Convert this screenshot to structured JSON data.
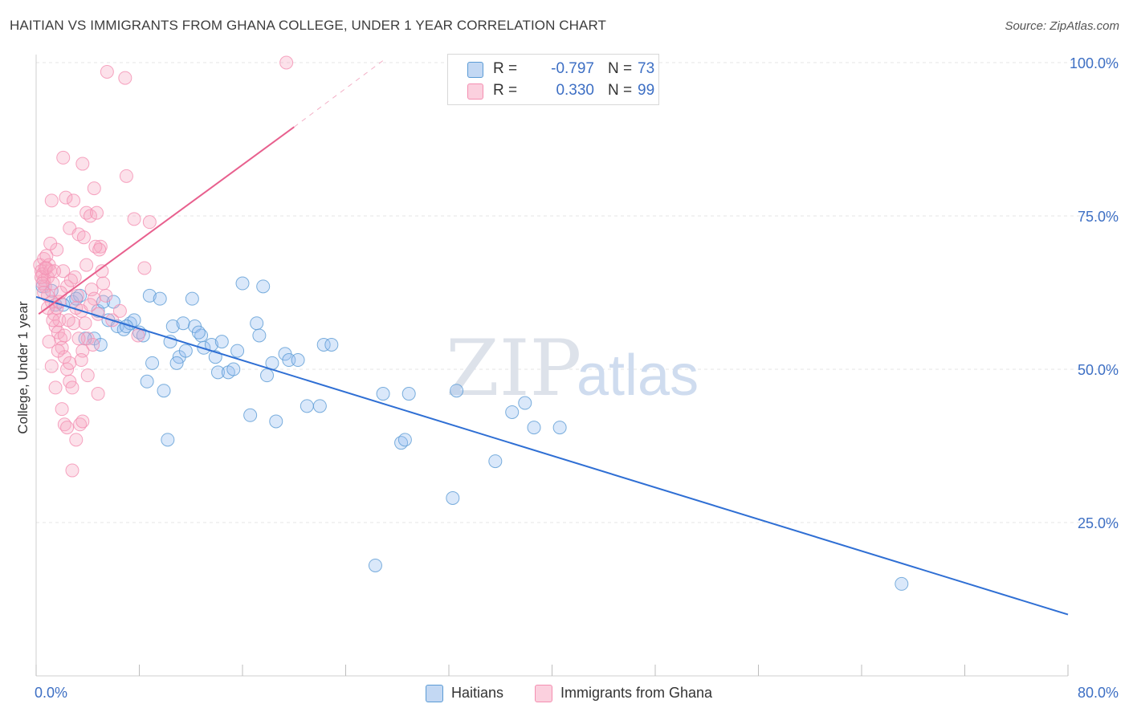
{
  "header": {
    "title": "HAITIAN VS IMMIGRANTS FROM GHANA COLLEGE, UNDER 1 YEAR CORRELATION CHART",
    "source": "Source: ZipAtlas.com"
  },
  "watermark": {
    "zip": "ZIP",
    "atlas": "atlas"
  },
  "legend": {
    "r_label": "R =",
    "n_label": "N =",
    "rows": [
      {
        "r": "-0.797",
        "n": "73",
        "color": "#5b9bd5"
      },
      {
        "r": "0.330",
        "n": "99",
        "color": "#f48fb1"
      }
    ]
  },
  "bottom_legend": [
    {
      "label": "Haitians",
      "color": "#5b9bd5"
    },
    {
      "label": "Immigrants from Ghana",
      "color": "#f48fb1"
    }
  ],
  "chart_data": {
    "type": "scatter",
    "title": "HAITIAN VS IMMIGRANTS FROM GHANA COLLEGE, UNDER 1 YEAR CORRELATION CHART",
    "xlabel": "",
    "ylabel": "College, Under 1 year",
    "xlim": [
      0,
      80
    ],
    "ylim": [
      0,
      102
    ],
    "x_tick_labels": [
      "0.0%",
      "80.0%"
    ],
    "y_tick_labels": [
      "25.0%",
      "50.0%",
      "75.0%",
      "100.0%"
    ],
    "y_ticks": [
      25,
      50,
      75,
      100
    ],
    "grid": true,
    "series": [
      {
        "name": "Haitians",
        "color": "#5b9bd5",
        "line_color": "#2f6fd4",
        "r": -0.797,
        "n": 73,
        "trend": {
          "x": [
            0,
            80
          ],
          "y": [
            61.8,
            10.0
          ]
        },
        "points": [
          [
            0.5,
            63.5
          ],
          [
            1.2,
            62.8
          ],
          [
            1.5,
            60.5
          ],
          [
            2.8,
            61.0
          ],
          [
            3.4,
            62.0
          ],
          [
            4.5,
            55.0
          ],
          [
            3.8,
            55.0
          ],
          [
            4.8,
            59.5
          ],
          [
            5.2,
            61.0
          ],
          [
            5.6,
            58.0
          ],
          [
            6.3,
            57.0
          ],
          [
            6.8,
            56.5
          ],
          [
            6.0,
            61.0
          ],
          [
            7.3,
            57.5
          ],
          [
            7.6,
            58.0
          ],
          [
            8.0,
            56.0
          ],
          [
            8.3,
            55.5
          ],
          [
            8.6,
            48.0
          ],
          [
            8.8,
            62.0
          ],
          [
            9.0,
            51.0
          ],
          [
            9.6,
            61.5
          ],
          [
            9.9,
            46.5
          ],
          [
            10.2,
            38.5
          ],
          [
            10.4,
            54.5
          ],
          [
            10.6,
            57.0
          ],
          [
            11.1,
            52.0
          ],
          [
            11.4,
            57.5
          ],
          [
            11.6,
            53.0
          ],
          [
            12.1,
            61.5
          ],
          [
            12.3,
            57.0
          ],
          [
            12.8,
            55.5
          ],
          [
            13.0,
            53.5
          ],
          [
            13.6,
            54.0
          ],
          [
            13.9,
            52.0
          ],
          [
            14.1,
            49.5
          ],
          [
            14.4,
            54.5
          ],
          [
            14.9,
            49.5
          ],
          [
            15.3,
            50.0
          ],
          [
            15.6,
            53.0
          ],
          [
            16.0,
            64.0
          ],
          [
            16.6,
            42.5
          ],
          [
            17.1,
            57.5
          ],
          [
            17.3,
            55.5
          ],
          [
            17.6,
            63.5
          ],
          [
            17.9,
            49.0
          ],
          [
            18.6,
            41.5
          ],
          [
            19.3,
            52.5
          ],
          [
            19.6,
            51.5
          ],
          [
            20.3,
            51.5
          ],
          [
            21.0,
            44.0
          ],
          [
            22.0,
            44.0
          ],
          [
            22.3,
            54.0
          ],
          [
            22.9,
            54.0
          ],
          [
            26.3,
            18.0
          ],
          [
            26.9,
            46.0
          ],
          [
            28.3,
            38.0
          ],
          [
            28.6,
            38.5
          ],
          [
            28.9,
            46.0
          ],
          [
            32.3,
            29.0
          ],
          [
            32.6,
            46.5
          ],
          [
            35.6,
            35.0
          ],
          [
            36.9,
            43.0
          ],
          [
            37.9,
            44.5
          ],
          [
            38.6,
            40.5
          ],
          [
            40.6,
            40.5
          ],
          [
            67.1,
            15.0
          ],
          [
            2.1,
            60.5
          ],
          [
            3.1,
            61.5
          ],
          [
            5.0,
            54.0
          ],
          [
            7.0,
            57.0
          ],
          [
            10.9,
            51.0
          ],
          [
            12.6,
            56.0
          ],
          [
            18.3,
            51.0
          ]
        ]
      },
      {
        "name": "Immigrants from Ghana",
        "color": "#f48fb1",
        "line_color": "#e8608e",
        "r": 0.33,
        "n": 99,
        "trend": {
          "x": [
            0.2,
            20
          ],
          "y": [
            59.0,
            89.5
          ]
        },
        "trend_dashed": {
          "x": [
            20,
            27
          ],
          "y": [
            89.5,
            100.5
          ]
        },
        "points": [
          [
            0.3,
            67.0
          ],
          [
            0.4,
            66.0
          ],
          [
            0.5,
            65.5
          ],
          [
            0.6,
            68.0
          ],
          [
            0.6,
            64.5
          ],
          [
            0.7,
            63.5
          ],
          [
            0.8,
            66.5
          ],
          [
            0.9,
            65.0
          ],
          [
            1.0,
            67.0
          ],
          [
            1.1,
            66.0
          ],
          [
            0.4,
            65.0
          ],
          [
            0.7,
            66.5
          ],
          [
            0.9,
            62.0
          ],
          [
            1.2,
            61.0
          ],
          [
            1.3,
            64.0
          ],
          [
            1.4,
            59.0
          ],
          [
            1.5,
            57.0
          ],
          [
            1.6,
            60.0
          ],
          [
            1.7,
            56.0
          ],
          [
            1.8,
            58.0
          ],
          [
            1.9,
            55.0
          ],
          [
            2.0,
            53.5
          ],
          [
            2.2,
            52.0
          ],
          [
            2.4,
            50.0
          ],
          [
            2.6,
            48.0
          ],
          [
            2.8,
            47.0
          ],
          [
            1.0,
            54.5
          ],
          [
            1.2,
            50.5
          ],
          [
            1.5,
            47.0
          ],
          [
            2.0,
            43.5
          ],
          [
            2.2,
            41.0
          ],
          [
            2.4,
            40.5
          ],
          [
            2.8,
            33.5
          ],
          [
            3.1,
            38.5
          ],
          [
            3.4,
            41.0
          ],
          [
            3.6,
            41.5
          ],
          [
            1.2,
            77.5
          ],
          [
            2.1,
            84.5
          ],
          [
            2.3,
            78.0
          ],
          [
            2.6,
            73.0
          ],
          [
            2.9,
            77.5
          ],
          [
            3.3,
            72.0
          ],
          [
            3.6,
            83.5
          ],
          [
            3.9,
            75.5
          ],
          [
            4.2,
            75.0
          ],
          [
            4.5,
            79.5
          ],
          [
            4.7,
            75.5
          ],
          [
            5.0,
            70.0
          ],
          [
            5.2,
            64.0
          ],
          [
            3.0,
            65.0
          ],
          [
            3.2,
            62.0
          ],
          [
            3.5,
            59.5
          ],
          [
            3.8,
            57.5
          ],
          [
            4.0,
            55.0
          ],
          [
            4.3,
            63.0
          ],
          [
            4.5,
            61.5
          ],
          [
            4.8,
            59.0
          ],
          [
            5.1,
            66.0
          ],
          [
            5.4,
            62.0
          ],
          [
            2.1,
            66.0
          ],
          [
            2.4,
            63.5
          ],
          [
            1.8,
            61.0
          ],
          [
            1.6,
            69.5
          ],
          [
            1.1,
            70.5
          ],
          [
            2.9,
            57.5
          ],
          [
            3.3,
            55.0
          ],
          [
            3.6,
            53.0
          ],
          [
            4.0,
            49.0
          ],
          [
            4.4,
            54.0
          ],
          [
            4.8,
            46.0
          ],
          [
            5.5,
            98.5
          ],
          [
            6.9,
            97.5
          ],
          [
            19.4,
            100.0
          ],
          [
            7.0,
            81.5
          ],
          [
            7.6,
            74.5
          ],
          [
            8.8,
            74.0
          ],
          [
            8.4,
            66.5
          ],
          [
            3.1,
            60.0
          ],
          [
            2.5,
            58.0
          ],
          [
            1.9,
            62.5
          ],
          [
            1.4,
            66.0
          ],
          [
            0.8,
            68.5
          ],
          [
            0.5,
            64.0
          ],
          [
            2.7,
            64.5
          ],
          [
            3.9,
            67.0
          ],
          [
            4.6,
            70.0
          ],
          [
            5.9,
            58.0
          ],
          [
            6.5,
            59.5
          ],
          [
            7.9,
            55.5
          ],
          [
            3.5,
            51.5
          ],
          [
            4.2,
            60.5
          ],
          [
            2.2,
            55.5
          ],
          [
            1.7,
            53.0
          ],
          [
            1.3,
            58.0
          ],
          [
            0.6,
            62.5
          ],
          [
            0.9,
            60.0
          ],
          [
            2.6,
            51.0
          ],
          [
            3.7,
            71.5
          ],
          [
            4.9,
            69.5
          ]
        ]
      }
    ]
  }
}
